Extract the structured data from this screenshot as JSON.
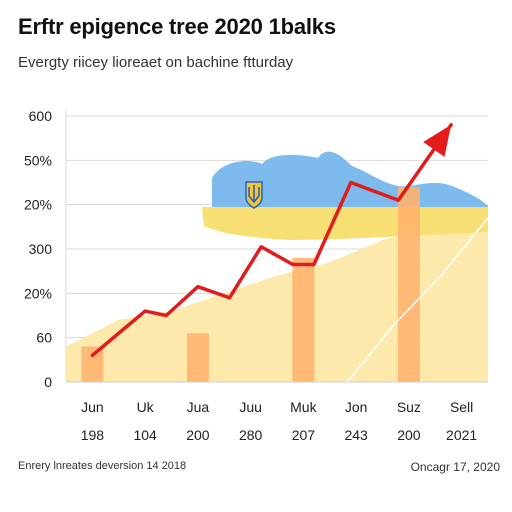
{
  "title": "Erftr epigence tree 2020 1balks",
  "subtitle": "Evergty riicey lioreaet on bachine ftturday",
  "footer": {
    "left": "Enrery lnreates deversion 14 2018",
    "right": "Oncagr 17, 2020"
  },
  "colors": {
    "line": "#e31b1b",
    "bar": "#ffb46e",
    "area": "#fde8a6",
    "secondary_line": "#ffffff",
    "map_blue": "#7dbbef",
    "map_yellow": "#f7df73",
    "grid": "#d9d9d9"
  },
  "icons": [
    "coat-of-arms-icon",
    "arrow-head-icon"
  ],
  "chart_data": {
    "type": "line",
    "y_tick_labels": [
      "0",
      "60",
      "20%",
      "300",
      "20%",
      "50%",
      "600"
    ],
    "x_tick_labels": [
      "Jun",
      "Uk",
      "Jua",
      "Juu",
      "Muk",
      "Jon",
      "Suz",
      "Sell"
    ],
    "x_tick_sublabels": [
      "198",
      "104",
      "200",
      "280",
      "207",
      "243",
      "200",
      "2021"
    ],
    "grid": true,
    "series": [
      {
        "kind": "line",
        "values": [
          60,
          160,
          150,
          215,
          190,
          305,
          265,
          265,
          450,
          410,
          580
        ],
        "x_positions": [
          0.0,
          1.0,
          1.4,
          2.0,
          2.6,
          3.2,
          3.8,
          4.2,
          4.9,
          5.8,
          6.8
        ]
      },
      {
        "kind": "bar",
        "categories_index": [
          0,
          2,
          4,
          6
        ],
        "values": [
          80,
          110,
          280,
          440
        ]
      },
      {
        "kind": "area",
        "values": [
          80,
          140,
          160,
          200,
          240,
          270,
          320,
          350,
          360
        ]
      },
      {
        "kind": "line",
        "values": [
          0,
          0,
          0,
          0,
          0,
          0,
          0,
          130,
          240,
          370
        ]
      }
    ],
    "ylim": [
      0,
      600
    ]
  }
}
